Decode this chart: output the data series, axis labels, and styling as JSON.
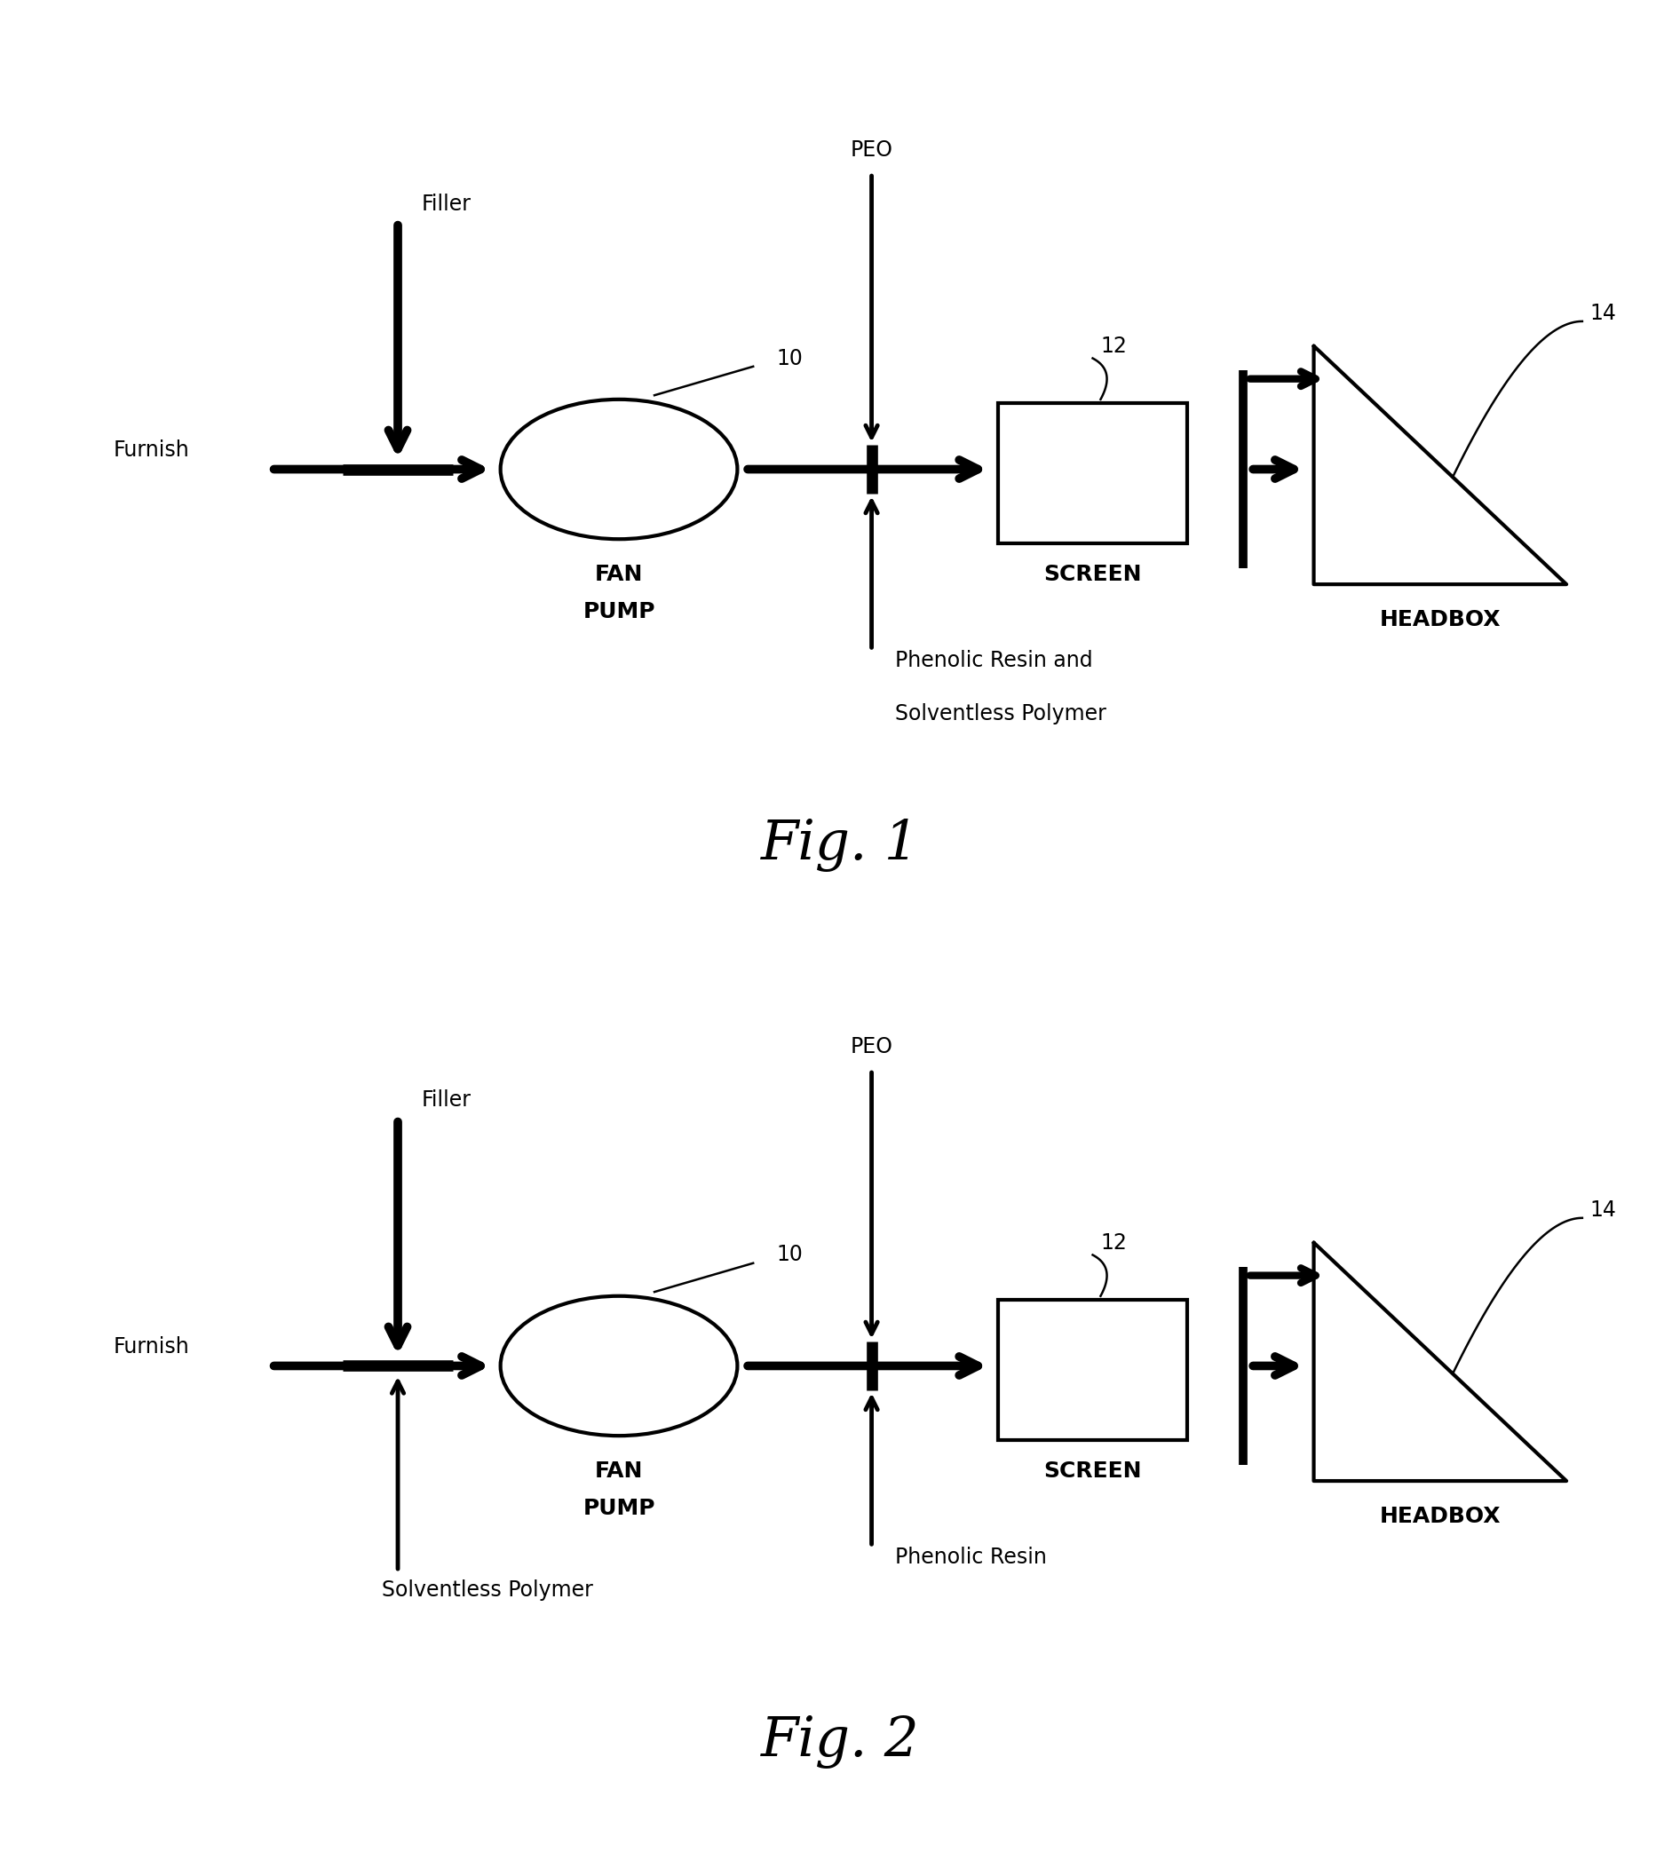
{
  "bg_color": "#ffffff",
  "fig_width": 18.92,
  "fig_height": 21.04,
  "diagrams": [
    {
      "index": 0,
      "title": "Fig. 1",
      "additive1": "Phenolic Resin and",
      "additive2": "Solventless Polymer",
      "solventless_separate": false
    },
    {
      "index": 1,
      "title": "Fig. 2",
      "additive1": "Phenolic Resin",
      "additive2": "",
      "solventless_separate": true,
      "solventless_label": "Solventless Polymer"
    }
  ]
}
